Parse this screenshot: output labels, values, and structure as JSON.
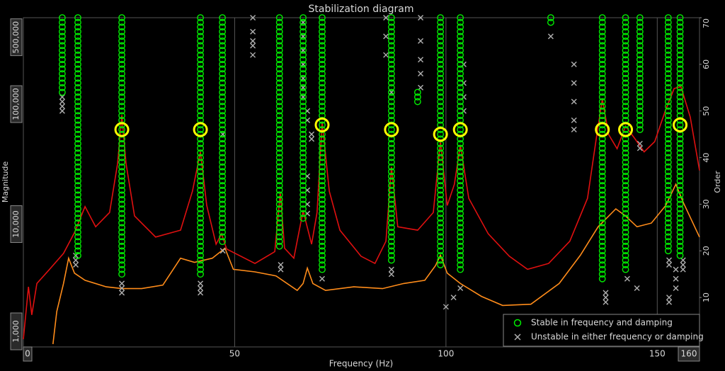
{
  "chart_data": {
    "type": "stabilization",
    "title": "Stabilization diagram",
    "xlabel": "Frequency (Hz)",
    "ylabel": "Magnitude",
    "y2label": "Order",
    "xlim": [
      0,
      160
    ],
    "xticks": [
      0,
      50,
      100,
      150,
      160
    ],
    "ylim": [
      1000,
      525000
    ],
    "yscale": "log",
    "yticks": [
      {
        "value": 1000,
        "label": "1,000"
      },
      {
        "value": 10000,
        "label": "10,000"
      },
      {
        "value": 100000,
        "label": "100,000"
      },
      {
        "value": 500000,
        "label": "500,000"
      }
    ],
    "y2lim": [
      0,
      70
    ],
    "y2ticks": [
      10,
      20,
      30,
      40,
      50,
      60,
      70
    ],
    "xgrid": true,
    "legend": "lower right",
    "series": [
      {
        "color": "#e01010",
        "x": [
          0,
          1.2,
          2.0,
          3.2,
          6.2,
          9.5,
          12.1,
          14.6,
          17.1,
          20.4,
          22.3,
          23.3,
          24.3,
          26.3,
          31.3,
          37.2,
          40,
          41.9,
          43.4,
          45.6,
          46.9,
          48.1,
          54.8,
          59.5,
          60.8,
          61.8,
          64,
          66.2,
          68.2,
          69.5,
          70.7,
          72.4,
          74.9,
          79.9,
          83.2,
          85.8,
          87.1,
          88.6,
          93.3,
          97,
          98.7,
          100.3,
          102,
          103.4,
          105.4,
          110,
          115,
          119.3,
          124.3,
          129.3,
          133.5,
          135.7,
          137,
          138.5,
          140.5,
          142.5,
          144.6,
          146.9,
          149.4,
          152,
          154,
          155.6,
          157.8,
          160
        ],
        "values": [
          1100,
          3000,
          1750,
          3200,
          4200,
          5700,
          8500,
          14000,
          9500,
          12500,
          32000,
          81000,
          32000,
          11700,
          7800,
          8900,
          18800,
          40000,
          14300,
          6800,
          8300,
          6200,
          4700,
          5900,
          18300,
          6300,
          5200,
          12900,
          6800,
          12500,
          71000,
          18800,
          8900,
          5400,
          4700,
          7200,
          30000,
          9500,
          8900,
          12500,
          48700,
          14300,
          21500,
          45500,
          16400,
          8300,
          5400,
          4200,
          4700,
          7200,
          16400,
          55700,
          110000,
          55700,
          42500,
          65600,
          52100,
          40000,
          48700,
          90000,
          135000,
          140000,
          78000,
          28000
        ]
      },
      {
        "color": "#ff8c1a",
        "x": [
          7.0,
          7.9,
          9.5,
          10.7,
          12.1,
          14.6,
          19.6,
          23.3,
          28,
          33,
          37.2,
          40.5,
          44.7,
          47.7,
          49.7,
          54.8,
          59.8,
          64.8,
          66.2,
          67.2,
          68.5,
          71.5,
          78.2,
          85,
          90,
          95,
          97.5,
          98.7,
          100.3,
          103.4,
          108.4,
          113.4,
          120.1,
          126.8,
          131.8,
          136,
          140.2,
          142.5,
          145.2,
          148.6,
          152,
          154.4,
          156.1,
          160
        ],
        "values": [
          1000,
          1870,
          3200,
          5200,
          3900,
          3400,
          3000,
          2900,
          2900,
          3100,
          5200,
          4800,
          5200,
          6300,
          4200,
          4000,
          3700,
          2800,
          3200,
          4300,
          3200,
          2800,
          3000,
          2900,
          3200,
          3400,
          4500,
          5500,
          3900,
          3200,
          2500,
          2100,
          2150,
          3200,
          5500,
          9500,
          13400,
          11700,
          9500,
          10200,
          14300,
          21500,
          15300,
          7800
        ]
      }
    ],
    "stable_poles": {
      "name": "Stable in frequency and damping",
      "color": "#00ee00",
      "columns": [
        {
          "frequency": 9.2,
          "orders": [
            54,
            70
          ]
        },
        {
          "frequency": 12.9,
          "orders": [
            19,
            70
          ]
        },
        {
          "frequency": 23.3,
          "orders": [
            15,
            70
          ]
        },
        {
          "frequency": 41.9,
          "orders": [
            15,
            70
          ]
        },
        {
          "frequency": 47.1,
          "orders": [
            22,
            70
          ]
        },
        {
          "frequency": 60.6,
          "orders": [
            21,
            70
          ]
        },
        {
          "frequency": 66.2,
          "orders": [
            27,
            70
          ]
        },
        {
          "frequency": 70.7,
          "orders": [
            16,
            70
          ]
        },
        {
          "frequency": 87.1,
          "orders": [
            18,
            70
          ]
        },
        {
          "frequency": 93.3,
          "orders": [
            52,
            54
          ]
        },
        {
          "frequency": 98.7,
          "orders": [
            17,
            70
          ]
        },
        {
          "frequency": 103.4,
          "orders": [
            16,
            70
          ]
        },
        {
          "frequency": 124.8,
          "orders": [
            69,
            70
          ]
        },
        {
          "frequency": 137,
          "orders": [
            14,
            70
          ]
        },
        {
          "frequency": 142.5,
          "orders": [
            16,
            70
          ]
        },
        {
          "frequency": 145.9,
          "orders": [
            46,
            70
          ]
        },
        {
          "frequency": 152.6,
          "orders": [
            20,
            70
          ]
        },
        {
          "frequency": 155.4,
          "orders": [
            19,
            70
          ]
        }
      ]
    },
    "unstable_poles": {
      "name": "Unstable in either frequency or damping",
      "color": "#b0b0b0",
      "points": [
        [
          9.2,
          50
        ],
        [
          9.2,
          51
        ],
        [
          9.2,
          52
        ],
        [
          9.2,
          53
        ],
        [
          12.4,
          17
        ],
        [
          12.4,
          18
        ],
        [
          12.4,
          19
        ],
        [
          23.3,
          11
        ],
        [
          23.3,
          12
        ],
        [
          23.3,
          13
        ],
        [
          41.9,
          11
        ],
        [
          41.9,
          12
        ],
        [
          41.9,
          13
        ],
        [
          47.2,
          45
        ],
        [
          47.2,
          20
        ],
        [
          54.3,
          62
        ],
        [
          54.3,
          64
        ],
        [
          54.3,
          65
        ],
        [
          54.3,
          67
        ],
        [
          54.3,
          70
        ],
        [
          60.9,
          16
        ],
        [
          60.9,
          17
        ],
        [
          66.2,
          53
        ],
        [
          66.2,
          55
        ],
        [
          66.2,
          57
        ],
        [
          66.2,
          60
        ],
        [
          66.2,
          63
        ],
        [
          66.2,
          66
        ],
        [
          66.2,
          69
        ],
        [
          67.2,
          28
        ],
        [
          67.2,
          30
        ],
        [
          67.2,
          33
        ],
        [
          67.2,
          36
        ],
        [
          67.2,
          48
        ],
        [
          67.2,
          50
        ],
        [
          68.2,
          44
        ],
        [
          68.2,
          45
        ],
        [
          70.7,
          14
        ],
        [
          85.8,
          62
        ],
        [
          85.8,
          66
        ],
        [
          85.8,
          70
        ],
        [
          87.1,
          54
        ],
        [
          87.1,
          15
        ],
        [
          87.1,
          16
        ],
        [
          94,
          55
        ],
        [
          94,
          58
        ],
        [
          94,
          61
        ],
        [
          94,
          65
        ],
        [
          94,
          70
        ],
        [
          100,
          8
        ],
        [
          101.8,
          10
        ],
        [
          103.4,
          12
        ],
        [
          104.2,
          50
        ],
        [
          104.2,
          53
        ],
        [
          104.2,
          56
        ],
        [
          104.2,
          60
        ],
        [
          124.8,
          66
        ],
        [
          130.3,
          46
        ],
        [
          130.3,
          48
        ],
        [
          130.3,
          52
        ],
        [
          130.3,
          56
        ],
        [
          130.3,
          60
        ],
        [
          137.8,
          9
        ],
        [
          137.8,
          10
        ],
        [
          137.8,
          11
        ],
        [
          142.9,
          14
        ],
        [
          145.2,
          12
        ],
        [
          145.9,
          42
        ],
        [
          145.9,
          43
        ],
        [
          152.8,
          9
        ],
        [
          152.8,
          10
        ],
        [
          152.8,
          17
        ],
        [
          152.8,
          18
        ],
        [
          154.4,
          12
        ],
        [
          154.4,
          14
        ],
        [
          154.4,
          16
        ],
        [
          156.1,
          16
        ],
        [
          156.1,
          17
        ],
        [
          156.1,
          18
        ]
      ]
    },
    "selected_modes": {
      "color": "#ffff00",
      "points": [
        [
          23.3,
          46
        ],
        [
          41.9,
          46
        ],
        [
          70.7,
          47
        ],
        [
          87.1,
          46
        ],
        [
          98.7,
          45
        ],
        [
          103.4,
          46
        ],
        [
          137,
          46
        ],
        [
          142.5,
          46
        ],
        [
          155.4,
          47
        ]
      ]
    }
  }
}
